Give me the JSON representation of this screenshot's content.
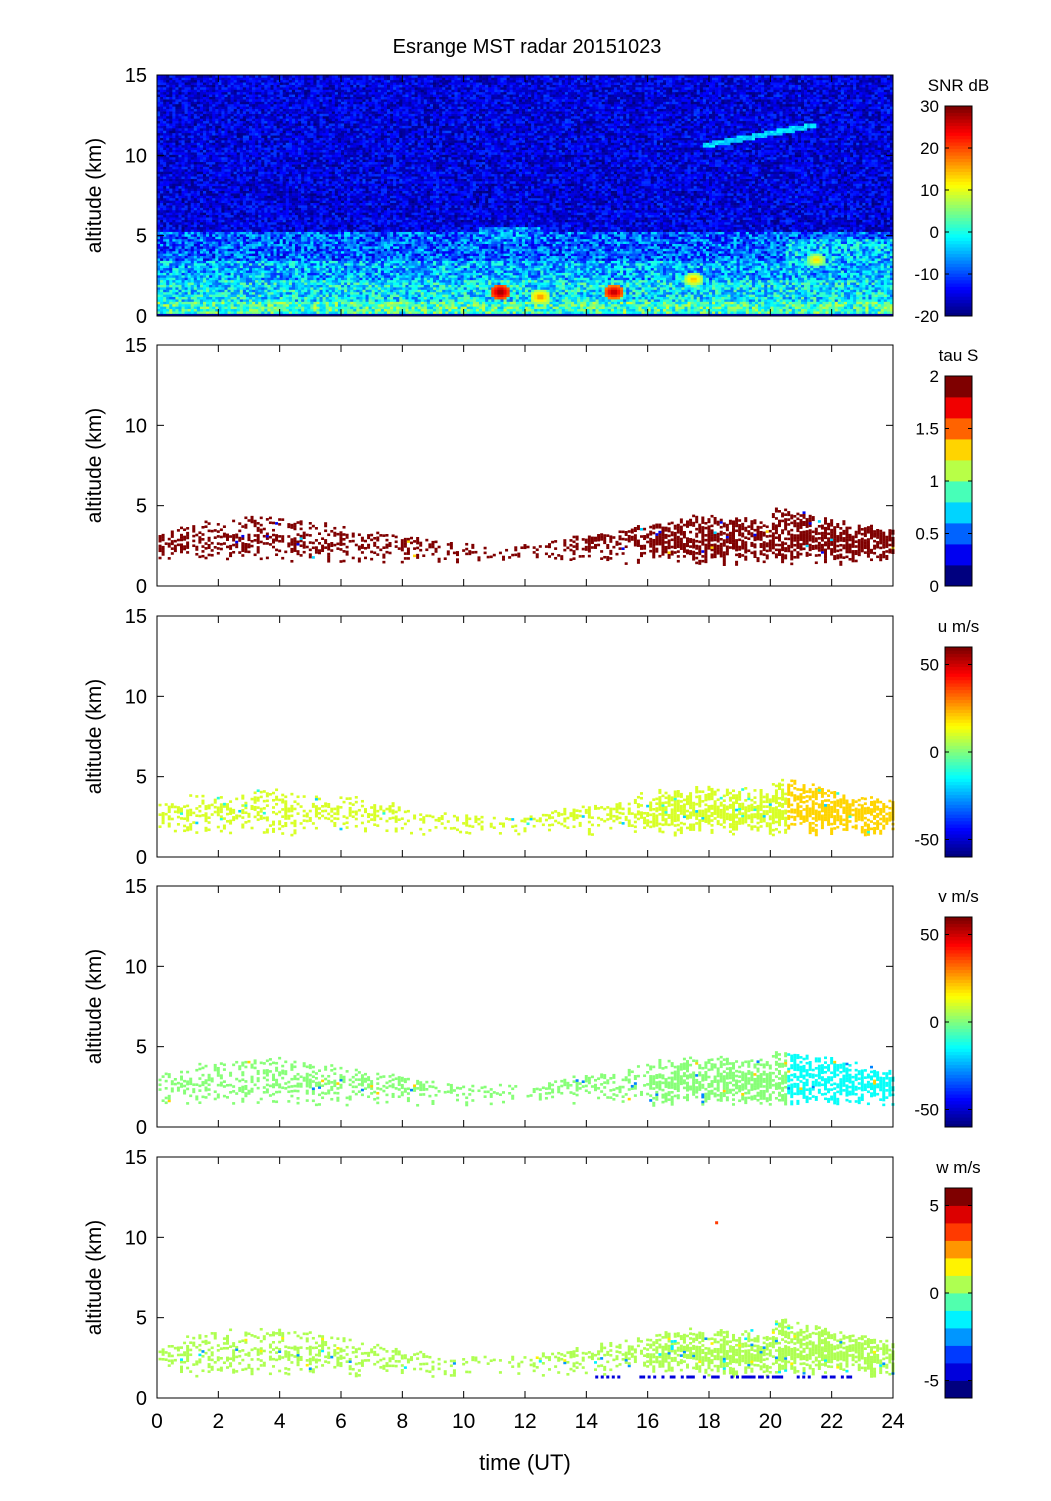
{
  "title": "Esrange MST radar 20151023",
  "xlabel": "time (UT)",
  "x_ticks": [
    0,
    2,
    4,
    6,
    8,
    10,
    12,
    14,
    16,
    18,
    20,
    22,
    24
  ],
  "panel_ylabel": "altitude (km)",
  "colormap_jet": [
    "#00007f",
    "#0000ff",
    "#007fff",
    "#00ffff",
    "#7fff7f",
    "#ffff00",
    "#ff7f00",
    "#ff0000",
    "#7f0000"
  ],
  "chart_data": [
    {
      "type": "heatmap",
      "id": "snr",
      "xlabel": "time (UT)",
      "ylabel": "altitude (km)",
      "xlim": [
        0,
        24
      ],
      "ylim": [
        0,
        15
      ],
      "y_ticks": [
        0,
        5,
        10,
        15
      ],
      "colorbar": {
        "label": "SNR dB",
        "range": [
          -20,
          30
        ],
        "ticks": [
          -20,
          -10,
          0,
          10,
          20,
          30
        ],
        "levels": 64
      },
      "background_value": -15,
      "layers": [
        {
          "x": [
            0,
            24
          ],
          "y": [
            0.2,
            0.9
          ],
          "value": 2
        },
        {
          "x": [
            0,
            24
          ],
          "y": [
            0.9,
            2.2
          ],
          "value": -2
        },
        {
          "x": [
            0,
            24
          ],
          "y": [
            2.2,
            3.4
          ],
          "value": -5
        },
        {
          "x": [
            0,
            24
          ],
          "y": [
            3.4,
            5.2
          ],
          "value": -9
        },
        {
          "x": [
            10.5,
            12.5
          ],
          "y": [
            4.5,
            5.5
          ],
          "value": -7
        },
        {
          "x": [
            20.5,
            24
          ],
          "y": [
            3.5,
            4.8
          ],
          "value": -4
        }
      ],
      "hotspots": [
        {
          "x": 11.2,
          "y": 1.5,
          "value": 30
        },
        {
          "x": 14.9,
          "y": 1.5,
          "value": 28
        },
        {
          "x": 12.5,
          "y": 1.2,
          "value": 18
        },
        {
          "x": 17.5,
          "y": 2.3,
          "value": 16
        },
        {
          "x": 21.5,
          "y": 3.5,
          "value": 14
        }
      ],
      "streak": {
        "x": [
          17.8,
          21.5
        ],
        "y": [
          10.6,
          11.9
        ],
        "value": -5
      }
    },
    {
      "type": "scatter",
      "id": "tau",
      "xlabel": "time (UT)",
      "ylabel": "altitude (km)",
      "xlim": [
        0,
        24
      ],
      "ylim": [
        0,
        15
      ],
      "y_ticks": [
        0,
        5,
        10,
        15
      ],
      "colorbar": {
        "label": "tau S",
        "range": [
          0,
          2
        ],
        "ticks": [
          0,
          0.5,
          1,
          1.5,
          2
        ],
        "levels": 10
      },
      "base_value": 1.95,
      "outlier_values": [
        0.6,
        0.3,
        1.2
      ],
      "outlier_fraction": 0.02
    },
    {
      "type": "scatter",
      "id": "u",
      "xlabel": "time (UT)",
      "ylabel": "altitude (km)",
      "xlim": [
        0,
        24
      ],
      "ylim": [
        0,
        15
      ],
      "y_ticks": [
        0,
        5,
        10,
        15
      ],
      "colorbar": {
        "label": "u m/s",
        "range": [
          -60,
          60
        ],
        "ticks": [
          -50,
          0,
          50
        ],
        "levels": 64
      },
      "base_value": 10,
      "late_value": 20,
      "outlier_values": [
        -10,
        -20
      ],
      "outlier_fraction": 0.03
    },
    {
      "type": "scatter",
      "id": "v",
      "xlabel": "time (UT)",
      "ylabel": "altitude (km)",
      "xlim": [
        0,
        24
      ],
      "ylim": [
        0,
        15
      ],
      "y_ticks": [
        0,
        5,
        10,
        15
      ],
      "colorbar": {
        "label": "v m/s",
        "range": [
          -60,
          60
        ],
        "ticks": [
          -50,
          0,
          50
        ],
        "levels": 64
      },
      "base_value": 0,
      "late_value": -15,
      "outlier_values": [
        20,
        -30
      ],
      "outlier_fraction": 0.03
    },
    {
      "type": "scatter",
      "id": "w",
      "xlabel": "time (UT)",
      "ylabel": "altitude (km)",
      "xlim": [
        0,
        24
      ],
      "ylim": [
        0,
        15
      ],
      "y_ticks": [
        0,
        5,
        10,
        15
      ],
      "colorbar": {
        "label": "w m/s",
        "range": [
          -6,
          6
        ],
        "ticks": [
          -5,
          0,
          5
        ],
        "levels": 12
      },
      "base_value": 0.2,
      "outlier_values": [
        -1.5,
        -3,
        1.5
      ],
      "outlier_fraction": 0.05,
      "low_band": {
        "x": [
          14.2,
          22.6
        ],
        "y": [
          1.0,
          1.4
        ],
        "value": -5
      },
      "isolated_point": {
        "x": 18.2,
        "y": 11,
        "value": 3.5
      }
    }
  ]
}
